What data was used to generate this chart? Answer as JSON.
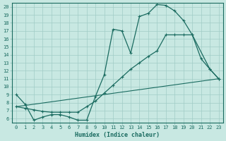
{
  "xlabel": "Humidex (Indice chaleur)",
  "bg_color": "#c8e8e2",
  "grid_color": "#a0ccc6",
  "line_color": "#1a6b60",
  "xlim": [
    -0.5,
    23.5
  ],
  "ylim": [
    5.5,
    20.5
  ],
  "xticks": [
    0,
    1,
    2,
    3,
    4,
    5,
    6,
    7,
    8,
    9,
    10,
    11,
    12,
    13,
    14,
    15,
    16,
    17,
    18,
    19,
    20,
    21,
    22,
    23
  ],
  "yticks": [
    6,
    7,
    8,
    9,
    10,
    11,
    12,
    13,
    14,
    15,
    16,
    17,
    18,
    19,
    20
  ],
  "line1_x": [
    0,
    1,
    2,
    3,
    4,
    5,
    6,
    7,
    8,
    9,
    10,
    11,
    12,
    13,
    14,
    15,
    16,
    17,
    18,
    19,
    20,
    22,
    23
  ],
  "line1_y": [
    9.0,
    7.8,
    5.8,
    6.2,
    6.5,
    6.5,
    6.2,
    5.8,
    5.8,
    8.8,
    11.5,
    17.2,
    17.0,
    14.2,
    18.8,
    19.2,
    20.3,
    20.2,
    19.5,
    18.3,
    16.5,
    12.2,
    11.0
  ],
  "line2_x": [
    0,
    1,
    2,
    3,
    4,
    5,
    6,
    7,
    8,
    9,
    10,
    11,
    12,
    13,
    14,
    15,
    16,
    17,
    18,
    19,
    20,
    21,
    22,
    23
  ],
  "line2_y": [
    7.5,
    7.3,
    7.1,
    6.9,
    6.8,
    6.8,
    6.8,
    6.8,
    7.5,
    8.2,
    9.2,
    10.2,
    11.2,
    12.2,
    13.0,
    13.8,
    14.5,
    16.5,
    16.5,
    16.5,
    16.5,
    13.5,
    12.2,
    11.0
  ],
  "line3_x": [
    0,
    23
  ],
  "line3_y": [
    7.5,
    11.0
  ]
}
